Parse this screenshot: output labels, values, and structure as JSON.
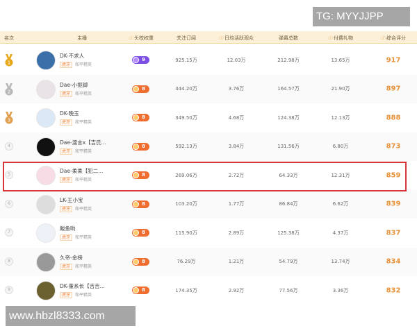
{
  "watermarks": {
    "top_right": "TG: MYYJJPP",
    "bottom_left": "www.hbzl8333.com"
  },
  "colors": {
    "accent": "#e8923a",
    "header_bg": "#fdf0d8",
    "highlight_border": "#d8343a",
    "badge_orange": "#ee6d2f",
    "badge_purple": "#7d4ee6"
  },
  "headers": {
    "rank": "名次",
    "streamer": "主播",
    "weight": "头校权重",
    "follows": "关注订阅",
    "daily_viewers": "日均活跃观众",
    "danmaku": "弹幕总数",
    "gifts": "付费礼物",
    "score": "综合评分"
  },
  "rows": [
    {
      "rank": "1",
      "name": "DK-不求人",
      "platform": "虎牙",
      "game": "和平精英",
      "weight": "9",
      "follows": "925.15万",
      "daily": "12.03万",
      "danmaku": "212.98万",
      "gifts": "13.65万",
      "score": "917"
    },
    {
      "rank": "2",
      "name": "Dae-小抠脚",
      "platform": "虎牙",
      "game": "和平精英",
      "weight": "8",
      "follows": "444.20万",
      "daily": "3.76万",
      "danmaku": "164.57万",
      "gifts": "21.90万",
      "score": "897"
    },
    {
      "rank": "3",
      "name": "DK-晚玉",
      "platform": "虎牙",
      "game": "和平精英",
      "weight": "8",
      "follows": "349.50万",
      "daily": "4.68万",
      "danmaku": "124.38万",
      "gifts": "12.13万",
      "score": "888"
    },
    {
      "rank": "4",
      "name": "Dae-渡言x【吉氏...",
      "platform": "虎牙",
      "game": "和平精英",
      "weight": "8",
      "follows": "592.13万",
      "daily": "3.84万",
      "danmaku": "131.56万",
      "gifts": "6.80万",
      "score": "873"
    },
    {
      "rank": "5",
      "name": "Dae-柔柔【犯二...",
      "platform": "虎牙",
      "game": "和平精英",
      "weight": "8",
      "follows": "269.06万",
      "daily": "2.72万",
      "danmaku": "64.33万",
      "gifts": "12.31万",
      "score": "859",
      "highlighted": true
    },
    {
      "rank": "6",
      "name": "LK-王小宝",
      "platform": "虎牙",
      "game": "和平精英",
      "weight": "8",
      "follows": "103.20万",
      "daily": "1.77万",
      "danmaku": "86.84万",
      "gifts": "6.62万",
      "score": "839"
    },
    {
      "rank": "7",
      "name": "鲅鱼哟",
      "platform": "虎牙",
      "game": "和平精英",
      "weight": "8",
      "follows": "115.90万",
      "daily": "2.89万",
      "danmaku": "125.38万",
      "gifts": "4.37万",
      "score": "837"
    },
    {
      "rank": "8",
      "name": "久帝-金榜",
      "platform": "虎牙",
      "game": "和平精英",
      "weight": "8",
      "follows": "76.29万",
      "daily": "1.21万",
      "danmaku": "54.79万",
      "gifts": "13.74万",
      "score": "834"
    },
    {
      "rank": "9",
      "name": "DK-董系长【吉吉...",
      "platform": "虎牙",
      "game": "和平精英",
      "weight": "8",
      "follows": "174.35万",
      "daily": "2.92万",
      "danmaku": "77.56万",
      "gifts": "3.36万",
      "score": "832"
    }
  ]
}
